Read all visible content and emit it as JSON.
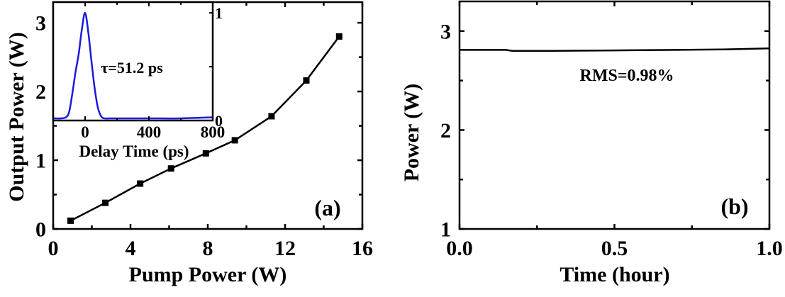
{
  "chart_data": [
    {
      "id": "a",
      "panel_label": "(a)",
      "type": "line",
      "title": "",
      "xlabel": "Pump Power (W)",
      "ylabel": "Output Power (W)",
      "xlim": [
        0,
        16
      ],
      "ylim": [
        0,
        3.3
      ],
      "xticks": [
        0,
        4,
        8,
        12,
        16
      ],
      "yticks": [
        0,
        1,
        2,
        3
      ],
      "grid": false,
      "series": [
        {
          "name": "Output Power",
          "marker": "square",
          "color": "#000000",
          "x": [
            0.9,
            2.7,
            4.5,
            6.1,
            7.9,
            9.4,
            11.3,
            13.1,
            14.8
          ],
          "y": [
            0.12,
            0.38,
            0.66,
            0.88,
            1.1,
            1.29,
            1.64,
            2.16,
            2.8
          ]
        }
      ],
      "inset": {
        "type": "line",
        "xlabel": "Delay Time (ps)",
        "ylabel": "",
        "xlim": [
          -200,
          800
        ],
        "ylim": [
          0,
          1.1
        ],
        "xticks": [
          0,
          400,
          800
        ],
        "yticks": [
          0,
          1
        ],
        "annotation": "τ=51.2 ps",
        "series": [
          {
            "name": "Autocorrelation trace",
            "color": "#1a1adc",
            "x": [
              -200,
              -150,
              -120,
              -100,
              -80,
              -60,
              -40,
              -20,
              0,
              20,
              40,
              60,
              80,
              100,
              120,
              150,
              200,
              400,
              600,
              800
            ],
            "y": [
              0.02,
              0.02,
              0.03,
              0.08,
              0.25,
              0.45,
              0.62,
              0.85,
              1.0,
              0.82,
              0.55,
              0.3,
              0.12,
              0.04,
              0.02,
              0.02,
              0.02,
              0.02,
              0.02,
              0.03
            ]
          }
        ]
      }
    },
    {
      "id": "b",
      "panel_label": "(b)",
      "type": "line",
      "title": "",
      "xlabel": "Time (hour)",
      "ylabel": "Power (W)",
      "xlim": [
        0.0,
        1.0
      ],
      "ylim": [
        1,
        3.3
      ],
      "xticks": [
        0.0,
        0.5,
        1.0
      ],
      "xtick_labels": [
        "0.0",
        "0.5",
        "1.0"
      ],
      "yticks": [
        1,
        2,
        3
      ],
      "grid": false,
      "annotation": "RMS=0.98%",
      "series": [
        {
          "name": "Power stability",
          "color": "#000000",
          "x": [
            0.0,
            0.1,
            0.15,
            0.17,
            0.3,
            0.5,
            0.7,
            0.85,
            1.0
          ],
          "y": [
            2.81,
            2.81,
            2.81,
            2.8,
            2.8,
            2.805,
            2.81,
            2.815,
            2.825
          ]
        }
      ]
    }
  ]
}
